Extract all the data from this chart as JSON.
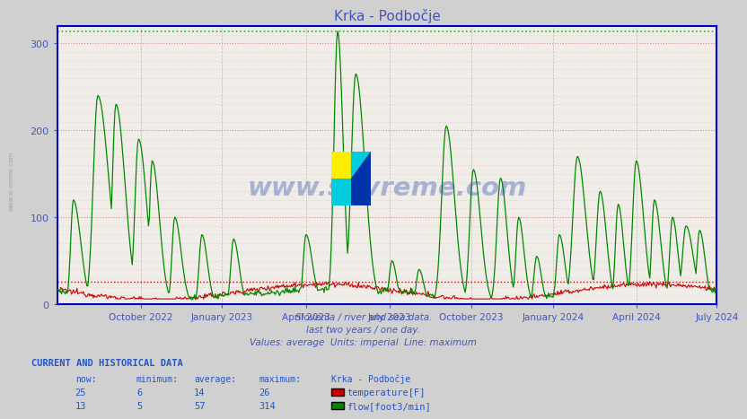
{
  "title": "Krka - Podbočje",
  "fig_bg_color": "#d0d0d0",
  "plot_bg_color": "#f0ede8",
  "title_color": "#4455bb",
  "axis_color": "#4455bb",
  "subtitle_lines": [
    "Slovenia / river and sea data.",
    "last two years / one day.",
    "Values: average  Units: imperial  Line: maximum"
  ],
  "subtitle_color": "#4455bb",
  "watermark": "www.si-vreme.com",
  "watermark_color": "#2244aa",
  "watermark_alpha": 0.35,
  "ylim": [
    0,
    320
  ],
  "yticks": [
    0,
    100,
    200,
    300
  ],
  "hline_green_y": 314,
  "hline_red_y": 26,
  "hline_green_color": "#00cc00",
  "hline_red_color": "#cc0000",
  "xtick_labels": [
    "October 2022",
    "January 2023",
    "April 2023",
    "July 2023",
    "October 2023",
    "January 2024",
    "April 2024",
    "July 2024"
  ],
  "xtick_positions": [
    0.127,
    0.25,
    0.378,
    0.504,
    0.628,
    0.752,
    0.878,
    1.0
  ],
  "temp_color": "#cc0000",
  "flow_color": "#008800",
  "border_color": "#0000cc",
  "table_header_color": "#2255cc",
  "table_data_color": "#2255cc",
  "table_title": "CURRENT AND HISTORICAL DATA",
  "table_cols": [
    "now:",
    "minimum:",
    "average:",
    "maximum:",
    "Krka - Podbočje"
  ],
  "table_row1": [
    "25",
    "6",
    "14",
    "26",
    "temperature[F]"
  ],
  "table_row2": [
    "13",
    "5",
    "57",
    "314",
    "flow[foot3/min]"
  ],
  "legend_colors": [
    "#cc0000",
    "#008800"
  ],
  "side_watermark": "www.si-vreme.com"
}
